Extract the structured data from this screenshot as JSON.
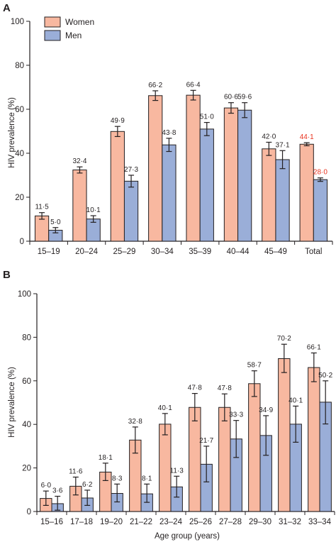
{
  "panels": [
    {
      "letter": "A",
      "legend": [
        "Women",
        "Men"
      ]
    },
    {
      "letter": "B"
    }
  ],
  "colors": {
    "women": "#f8b8a0",
    "men": "#9aaed8",
    "outline": "#231f20",
    "highlight_label": "#e8321e"
  },
  "chart_data": [
    {
      "type": "bar",
      "panel": "A",
      "ylabel": "HIV prevalence (%)",
      "xlabel": "",
      "ylim": [
        0,
        100
      ],
      "yticks": [
        0,
        20,
        40,
        60,
        80,
        100
      ],
      "categories": [
        "15–19",
        "20–24",
        "25–29",
        "30–34",
        "35–39",
        "40–44",
        "45–49",
        "Total"
      ],
      "series": [
        {
          "name": "Women",
          "values": [
            11.5,
            32.4,
            49.9,
            66.2,
            66.4,
            60.6,
            42.0,
            44.1
          ],
          "labels": [
            "11·5",
            "32·4",
            "49·9",
            "66·2",
            "66·4",
            "60·6",
            "42·0",
            "44·1"
          ],
          "ci_low": [
            10.0,
            31.0,
            47.6,
            64.0,
            64.2,
            58.2,
            39.0,
            43.4
          ],
          "ci_high": [
            13.0,
            33.8,
            52.2,
            68.4,
            68.6,
            63.0,
            45.0,
            44.8
          ]
        },
        {
          "name": "Men",
          "values": [
            5.0,
            10.1,
            27.3,
            43.8,
            51.0,
            59.6,
            37.1,
            28.0
          ],
          "labels": [
            "5·0",
            "10·1",
            "27·3",
            "43·8",
            "51·0",
            "59·6",
            "37·1",
            "28·0"
          ],
          "ci_low": [
            3.8,
            8.6,
            24.6,
            40.8,
            48.0,
            56.2,
            33.0,
            27.2
          ],
          "ci_high": [
            6.2,
            11.6,
            30.0,
            46.8,
            54.0,
            63.0,
            41.2,
            28.8
          ]
        }
      ],
      "highlight_category": "Total"
    },
    {
      "type": "bar",
      "panel": "B",
      "ylabel": "HIV prevalence (%)",
      "xlabel": "Age group (years)",
      "ylim": [
        0,
        100
      ],
      "yticks": [
        0,
        20,
        40,
        60,
        80,
        100
      ],
      "categories": [
        "15–16",
        "17–18",
        "19–20",
        "21–22",
        "23–24",
        "25–26",
        "27–28",
        "29–30",
        "31–32",
        "33–34"
      ],
      "series": [
        {
          "name": "Women",
          "values": [
            6.0,
            11.6,
            18.1,
            32.8,
            40.1,
            47.8,
            47.8,
            58.7,
            70.2,
            66.1
          ],
          "labels": [
            "6·0",
            "11·6",
            "18·1",
            "32·8",
            "40·1",
            "47·8",
            "47·8",
            "58·7",
            "70·2",
            "66·1"
          ],
          "ci_low": [
            2.8,
            7.6,
            14.2,
            26.8,
            35.2,
            41.6,
            41.6,
            52.8,
            63.8,
            59.6
          ],
          "ci_high": [
            9.4,
            15.8,
            22.2,
            38.8,
            45.0,
            54.2,
            54.0,
            64.6,
            76.8,
            72.8
          ]
        },
        {
          "name": "Men",
          "values": [
            3.6,
            6.2,
            8.3,
            8.1,
            11.3,
            21.7,
            33.3,
            34.9,
            40.1,
            50.2
          ],
          "labels": [
            "3·6",
            "6·2",
            "8·3",
            "8·1",
            "11·3",
            "21·7",
            "33·3",
            "34·9",
            "40·1",
            "50·2"
          ],
          "ci_low": [
            0.6,
            2.8,
            4.4,
            4.2,
            6.6,
            13.6,
            24.8,
            25.8,
            31.8,
            40.2
          ],
          "ci_high": [
            7.0,
            9.8,
            12.6,
            12.6,
            16.2,
            30.0,
            41.8,
            44.0,
            48.4,
            60.0
          ]
        }
      ]
    }
  ]
}
